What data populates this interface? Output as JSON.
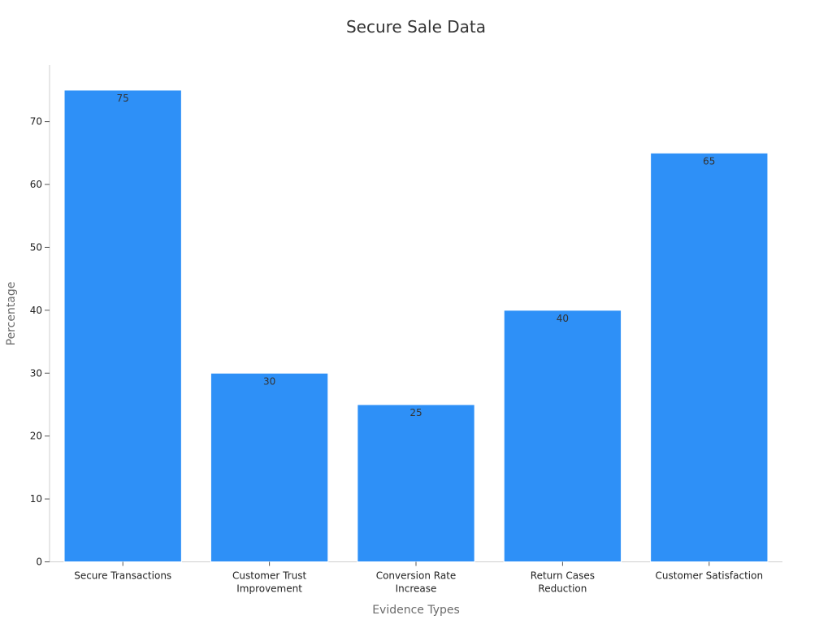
{
  "chart_data": {
    "type": "bar",
    "title": "Secure Sale Data",
    "xlabel": "Evidence Types",
    "ylabel": "Percentage",
    "categories": [
      [
        "Secure Transactions"
      ],
      [
        "Customer Trust",
        "Improvement"
      ],
      [
        "Conversion Rate",
        "Increase"
      ],
      [
        "Return Cases",
        "Reduction"
      ],
      [
        "Customer Satisfaction"
      ]
    ],
    "values": [
      75,
      30,
      25,
      40,
      65
    ],
    "ylim": [
      0,
      80
    ],
    "yticks": [
      0,
      10,
      20,
      30,
      40,
      50,
      60,
      70
    ],
    "grid": false,
    "legend": "none",
    "bar_color": "#2e90f7",
    "data_labels": true
  }
}
